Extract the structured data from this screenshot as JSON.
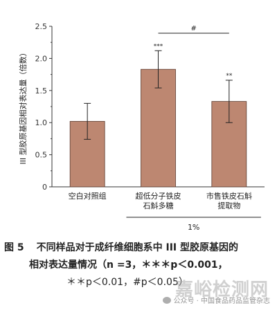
{
  "chart_data": {
    "type": "bar",
    "categories": [
      "空白对照组",
      "超低分子铁皮\n石斛多糖",
      "市售铁皮石斛\n提取物"
    ],
    "values": [
      1.02,
      1.83,
      1.33
    ],
    "errors": [
      0.28,
      0.29,
      0.33
    ],
    "significance": [
      "",
      "***",
      "**"
    ],
    "bracket": {
      "from": 1,
      "to": 2,
      "label": "#"
    },
    "xlabel": "1%",
    "ylabel": "III 型胶原基因相对表达量（倍数）",
    "ylim": [
      0,
      2.5
    ],
    "yticks": [
      "0",
      "0.5",
      "1.0",
      "1.5",
      "2.0",
      "2.5"
    ],
    "grid": false,
    "colors": {
      "bar": "#bd8771",
      "bar_edge": "#5a3a2e",
      "axis": "#333333"
    }
  },
  "caption": {
    "fig_no": "图 5",
    "title": "不同样品对于成纤维细胞系中 III 型胶原基因的",
    "line2": "相对表达量情况（n =3，＊＊＊p＜0.001，",
    "line3": "＊＊p＜0.01，#p＜0.05）"
  },
  "watermark": {
    "text": "嘉峪检测网",
    "account": "公众号 · 中国食品药品监管杂志"
  }
}
